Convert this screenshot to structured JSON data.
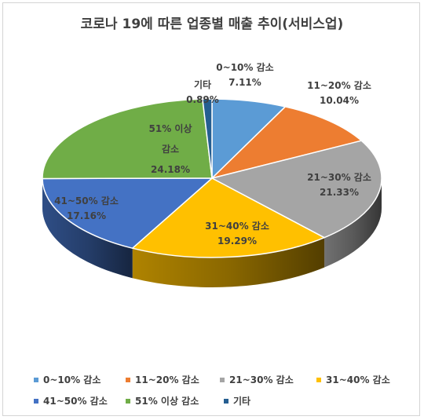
{
  "chart_data": {
    "type": "pie",
    "title": "코로나 19에 따른 업종별 매출 추이(서비스업)",
    "categories": [
      "0~10% 감소",
      "11~20% 감소",
      "21~30% 감소",
      "31~40% 감소",
      "41~50% 감소",
      "51% 이상 감소",
      "기타"
    ],
    "values": [
      7.11,
      10.04,
      21.33,
      19.29,
      17.16,
      24.18,
      0.89
    ],
    "data_labels": [
      [
        "0~10% 감소",
        "7.11%"
      ],
      [
        "11~20% 감소",
        "10.04%"
      ],
      [
        "21~30% 감소",
        "21.33%"
      ],
      [
        "31~40% 감소",
        "19.29%"
      ],
      [
        "41~50% 감소",
        "17.16%"
      ],
      [
        "51% 이상",
        "감소",
        "24.18%"
      ],
      [
        "기타",
        "0.89%"
      ]
    ],
    "colors": [
      "#5B9BD5",
      "#ED7D31",
      "#A5A5A5",
      "#FFC000",
      "#4472C4",
      "#70AD47",
      "#255E91"
    ],
    "legend_position": "bottom",
    "style": "3d"
  }
}
